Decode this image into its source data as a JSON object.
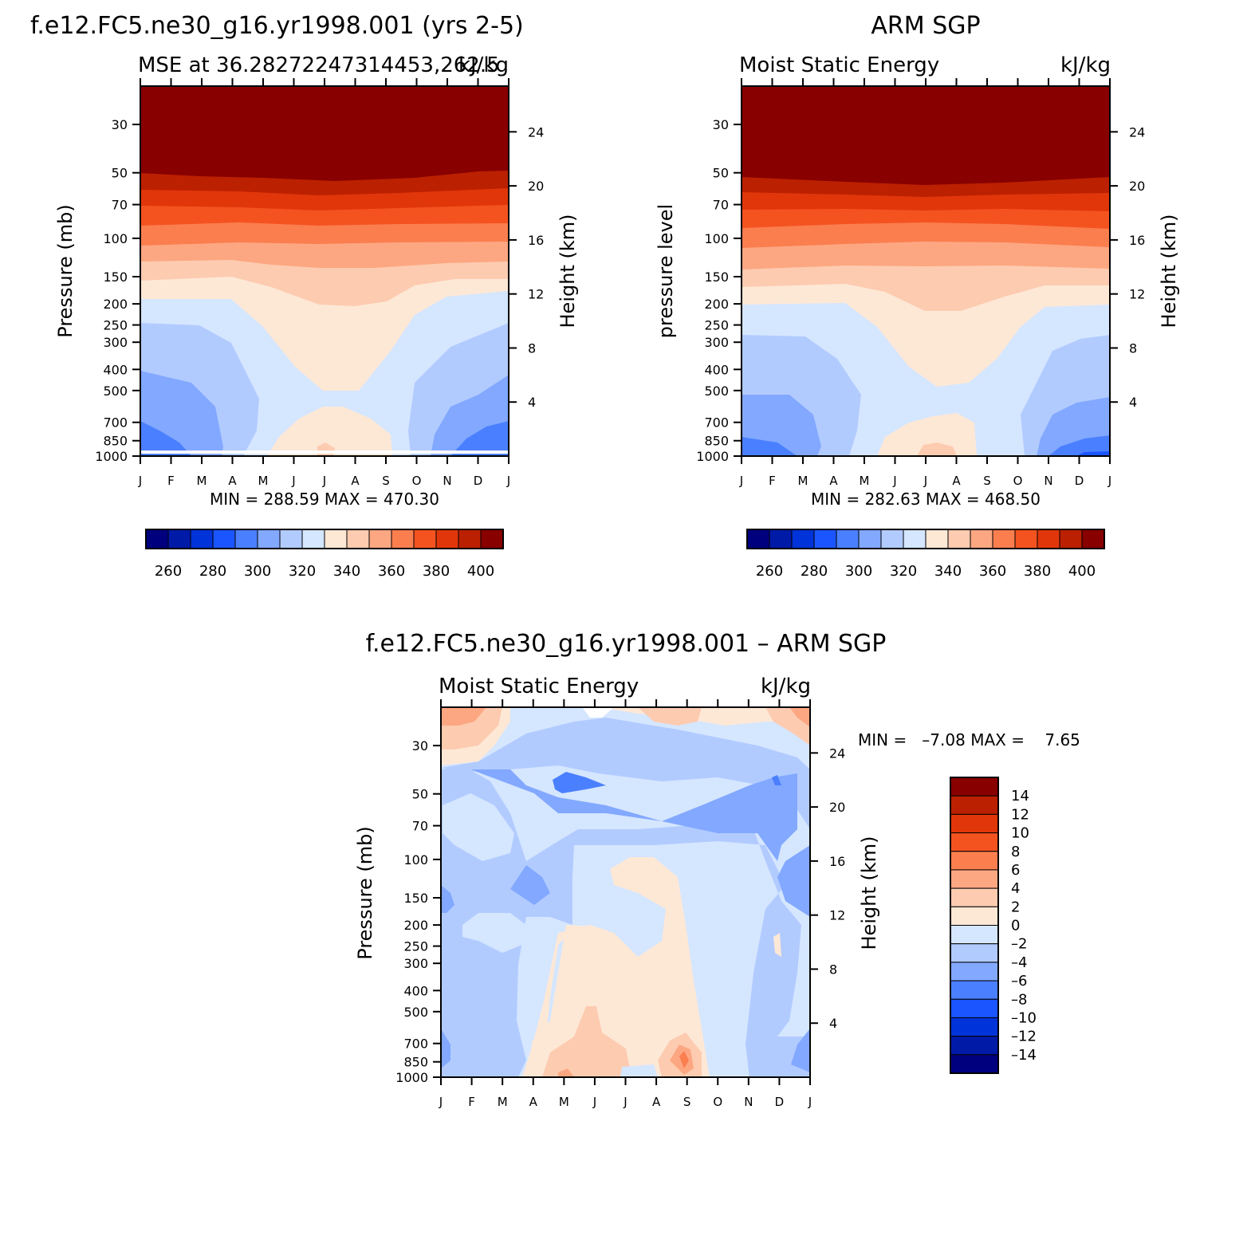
{
  "chart_data": [
    {
      "type": "heatmap",
      "panel": "model",
      "title": "f.e12.FC5.ne30_g16.yr1998.001 (yrs 2-5)",
      "subtitle_left": "MSE at 36.28272247314453,262.5",
      "subtitle_right": "kJ/kg",
      "xlabel": "",
      "ylabel": "Pressure (mb)",
      "ylabel_right": "Height (km)",
      "months": [
        "J",
        "F",
        "M",
        "A",
        "M",
        "J",
        "J",
        "A",
        "S",
        "O",
        "N",
        "D",
        "J"
      ],
      "pressure_levels": [
        1000,
        850,
        700,
        500,
        400,
        300,
        250,
        200,
        150,
        100,
        70,
        50,
        30
      ],
      "pressure_range": [
        1000,
        20
      ],
      "height_ticks": [
        4,
        8,
        12,
        16,
        20,
        24
      ],
      "min_max_text": "MIN = 288.59 MAX = 470.30",
      "min": 288.59,
      "max": 470.3,
      "colorbar_ticks": [
        260,
        280,
        300,
        320,
        340,
        360,
        380,
        400
      ],
      "contour_levels": [
        250,
        260,
        270,
        280,
        290,
        300,
        310,
        320,
        330,
        340,
        350,
        360,
        370,
        380,
        390,
        400
      ],
      "colors": [
        "#00007f",
        "#001aa8",
        "#0033d9",
        "#1a55ff",
        "#4a80ff",
        "#82a8ff",
        "#b2cbff",
        "#d5e6ff",
        "#fde8d6",
        "#fdcbb0",
        "#fca782",
        "#fb7e4f",
        "#f45320",
        "#e1360a",
        "#bb2000",
        "#880000"
      ],
      "profiles": {
        "levels": [
          1000,
          850,
          700,
          500,
          400,
          300,
          250,
          200,
          150,
          100,
          70,
          50,
          30
        ],
        "Jan": [
          288,
          300,
          305,
          312,
          315,
          318,
          322,
          330,
          340,
          360,
          378,
          410,
          470
        ],
        "Jul": [
          332,
          335,
          334,
          330,
          331,
          335,
          337,
          340,
          348,
          365,
          380,
          410,
          470
        ]
      }
    },
    {
      "type": "heatmap",
      "panel": "obs",
      "title": "ARM SGP",
      "subtitle_left": "Moist Static Energy",
      "subtitle_right": "kJ/kg",
      "ylabel": "pressure level",
      "ylabel_right": "Height (km)",
      "months": [
        "J",
        "F",
        "M",
        "A",
        "M",
        "J",
        "J",
        "A",
        "S",
        "O",
        "N",
        "D",
        "J"
      ],
      "pressure_levels": [
        1000,
        850,
        700,
        500,
        400,
        300,
        250,
        200,
        150,
        100,
        70,
        50,
        30
      ],
      "height_ticks": [
        4,
        8,
        12,
        16,
        20,
        24
      ],
      "min_max_text": "MIN = 282.63 MAX = 468.50",
      "min": 282.63,
      "max": 468.5,
      "colorbar_ticks": [
        260,
        280,
        300,
        320,
        340,
        360,
        380,
        400
      ]
    },
    {
      "type": "heatmap",
      "panel": "difference",
      "title": "f.e12.FC5.ne30_g16.yr1998.001 – ARM SGP",
      "subtitle_left": "Moist Static Energy",
      "subtitle_right": "kJ/kg",
      "ylabel": "Pressure (mb)",
      "ylabel_right": "Height (km)",
      "months": [
        "J",
        "F",
        "M",
        "A",
        "M",
        "J",
        "J",
        "A",
        "S",
        "O",
        "N",
        "D",
        "J"
      ],
      "pressure_levels": [
        1000,
        850,
        700,
        500,
        400,
        300,
        250,
        200,
        150,
        100,
        70,
        50,
        30
      ],
      "height_ticks": [
        4,
        8,
        12,
        16,
        20,
        24
      ],
      "min_max_text": "MIN =   –7.08 MAX =    7.65",
      "min": -7.08,
      "max": 7.65,
      "colorbar_ticks": [
        "14",
        "12",
        "10",
        "8",
        "6",
        "4",
        "2",
        "0",
        "–2",
        "–4",
        "–6",
        "–8",
        "–10",
        "–12",
        "–14"
      ],
      "contour_levels": [
        -14,
        -12,
        -10,
        -8,
        -6,
        -4,
        -2,
        0,
        2,
        4,
        6,
        8,
        10,
        12,
        14
      ],
      "colors": [
        "#880000",
        "#bb2000",
        "#e1360a",
        "#f45320",
        "#fb7e4f",
        "#fca782",
        "#fdcbb0",
        "#fde8d6",
        "#d5e6ff",
        "#b2cbff",
        "#82a8ff",
        "#4a80ff",
        "#1a55ff",
        "#0033d9",
        "#001aa8",
        "#00007f"
      ]
    }
  ]
}
